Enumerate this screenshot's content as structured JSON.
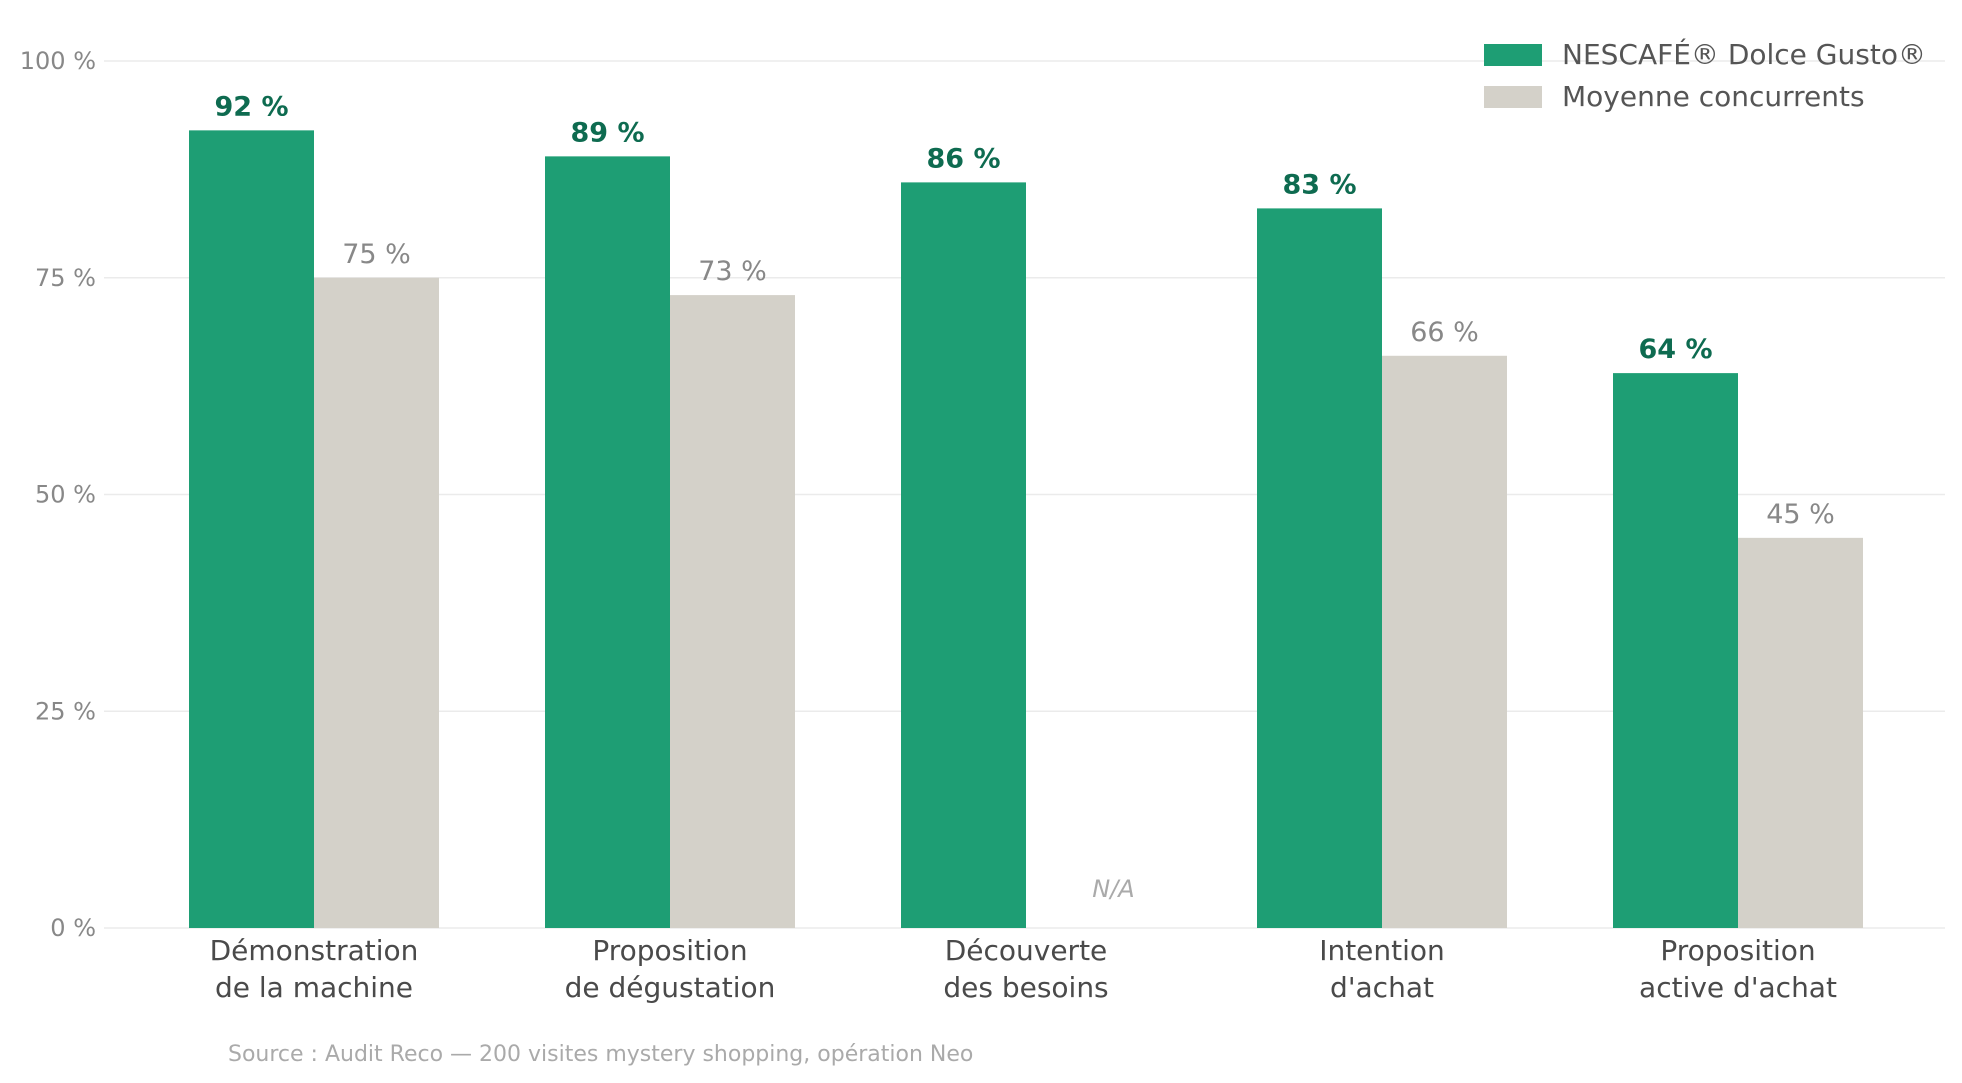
{
  "chart_data": {
    "type": "bar",
    "categories": [
      [
        "Démonstration",
        "de la machine"
      ],
      [
        "Proposition",
        "de dégustation"
      ],
      [
        "Découverte",
        "des besoins"
      ],
      [
        "Intention",
        "d'achat"
      ],
      [
        "Proposition",
        "active d'achat"
      ]
    ],
    "series": [
      {
        "name": "NESCAFÉ® Dolce Gusto®",
        "color": "#1e9e74",
        "label_color": "#0e6b50",
        "values": [
          92,
          89,
          86,
          83,
          64
        ],
        "labels": [
          "92 %",
          "89 %",
          "86 %",
          "83 %",
          "64 %"
        ]
      },
      {
        "name": "Moyenne concurrents",
        "color": "#d4d1c9",
        "label_color": "#888888",
        "values": [
          75,
          73,
          null,
          66,
          45
        ],
        "labels": [
          "75 %",
          "73 %",
          "N/A",
          "66 %",
          "45 %"
        ]
      }
    ],
    "ylim": [
      0,
      100
    ],
    "yticks": [
      0,
      25,
      50,
      75,
      100
    ],
    "ytick_labels": [
      "0 %",
      "25 %",
      "50 %",
      "75 %",
      "100 %"
    ],
    "grid": true,
    "legend_position": "top-right"
  },
  "source": "Source : Audit Reco — 200 visites mystery shopping, opération Neo"
}
